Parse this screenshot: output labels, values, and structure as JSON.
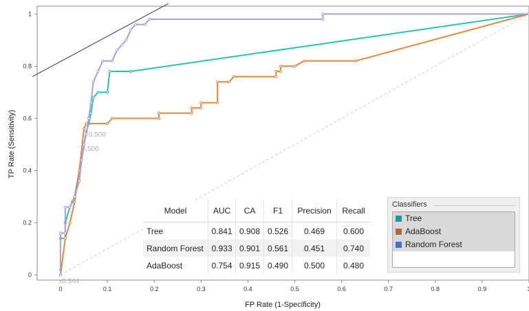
{
  "chart_data": {
    "type": "line",
    "xlabel": "FP Rate (1-Specificity)",
    "ylabel": "TP Rate (Sensitivity)",
    "xlim": [
      -0.05,
      1.0
    ],
    "ylim": [
      -0.02,
      1.03
    ],
    "x_ticks": [
      "0",
      "0.1",
      "0.2",
      "0.3",
      "0.4",
      "0.5",
      "0.6",
      "0.7",
      "0.8",
      "0.9",
      "1"
    ],
    "y_ticks": [
      "0",
      "0.2",
      "0.4",
      "0.6",
      "0.8",
      "1"
    ],
    "grid": false,
    "series": [
      {
        "name": "Tree",
        "color": "#22c7a6",
        "points": [
          [
            0,
            0
          ],
          [
            0,
            0.02
          ],
          [
            0,
            0.14
          ],
          [
            0.01,
            0.14
          ],
          [
            0.01,
            0.2
          ],
          [
            0.02,
            0.26
          ],
          [
            0.025,
            0.28
          ],
          [
            0.03,
            0.3
          ],
          [
            0.04,
            0.4
          ],
          [
            0.045,
            0.44
          ],
          [
            0.05,
            0.5
          ],
          [
            0.055,
            0.55
          ],
          [
            0.06,
            0.58
          ],
          [
            0.065,
            0.62
          ],
          [
            0.07,
            0.68
          ],
          [
            0.08,
            0.7
          ],
          [
            0.1,
            0.7
          ],
          [
            0.105,
            0.78
          ],
          [
            0.15,
            0.78
          ],
          [
            1,
            1
          ]
        ]
      },
      {
        "name": "AdaBoost",
        "color": "#e8853a",
        "points": [
          [
            0,
            0
          ],
          [
            0.01,
            0.14
          ],
          [
            0.02,
            0.2
          ],
          [
            0.03,
            0.28
          ],
          [
            0.04,
            0.4
          ],
          [
            0.05,
            0.56
          ],
          [
            0.055,
            0.58
          ],
          [
            0.1,
            0.58
          ],
          [
            0.11,
            0.6
          ],
          [
            0.21,
            0.6
          ],
          [
            0.21,
            0.62
          ],
          [
            0.28,
            0.62
          ],
          [
            0.28,
            0.64
          ],
          [
            0.3,
            0.64
          ],
          [
            0.3,
            0.66
          ],
          [
            0.335,
            0.66
          ],
          [
            0.335,
            0.74
          ],
          [
            0.36,
            0.74
          ],
          [
            0.37,
            0.76
          ],
          [
            0.46,
            0.76
          ],
          [
            0.46,
            0.78
          ],
          [
            0.47,
            0.78
          ],
          [
            0.47,
            0.8
          ],
          [
            0.5,
            0.8
          ],
          [
            0.52,
            0.82
          ],
          [
            0.63,
            0.82
          ],
          [
            1,
            1
          ]
        ]
      },
      {
        "name": "Random Forest",
        "color": "#a99ee3",
        "points": [
          [
            0,
            0
          ],
          [
            0,
            0.16
          ],
          [
            0.01,
            0.16
          ],
          [
            0.01,
            0.26
          ],
          [
            0.02,
            0.26
          ],
          [
            0.03,
            0.3
          ],
          [
            0.04,
            0.36
          ],
          [
            0.045,
            0.44
          ],
          [
            0.05,
            0.5
          ],
          [
            0.055,
            0.54
          ],
          [
            0.06,
            0.6
          ],
          [
            0.065,
            0.66
          ],
          [
            0.07,
            0.74
          ],
          [
            0.08,
            0.78
          ],
          [
            0.09,
            0.82
          ],
          [
            0.11,
            0.82
          ],
          [
            0.12,
            0.86
          ],
          [
            0.13,
            0.88
          ],
          [
            0.14,
            0.9
          ],
          [
            0.15,
            0.94
          ],
          [
            0.16,
            0.96
          ],
          [
            0.18,
            0.96
          ],
          [
            0.19,
            0.98
          ],
          [
            0.56,
            0.98
          ],
          [
            0.56,
            1
          ],
          [
            1,
            1
          ]
        ]
      }
    ],
    "diagonal": {
      "color": "#cfcfcf"
    },
    "iso_line": {
      "x1": -0.06,
      "y1": 0.76,
      "x2": 0.23,
      "y2": 1.04,
      "color": "#333333"
    },
    "threshold_labels": [
      {
        "text": "0.500",
        "x": 0.06,
        "y": 0.53
      },
      {
        "text": "0.500",
        "x": 0.045,
        "y": 0.475
      },
      {
        "text": "0.344",
        "x": 0.003,
        "y": -0.032
      }
    ]
  },
  "metrics_table": {
    "headers": [
      "Model",
      "AUC",
      "CA",
      "F1",
      "Precision",
      "Recall"
    ],
    "rows": [
      {
        "model": "Tree",
        "auc": "0.841",
        "ca": "0.908",
        "f1": "0.526",
        "precision": "0.469",
        "recall": "0.600"
      },
      {
        "model": "Random Forest",
        "auc": "0.933",
        "ca": "0.901",
        "f1": "0.561",
        "precision": "0.451",
        "recall": "0.740"
      },
      {
        "model": "AdaBoost",
        "auc": "0.754",
        "ca": "0.915",
        "f1": "0.490",
        "precision": "0.500",
        "recall": "0.480"
      }
    ]
  },
  "classifiers_legend": {
    "title": "Classifiers",
    "items": [
      {
        "label": "Tree",
        "color": "#1a9c9a"
      },
      {
        "label": "AdaBoost",
        "color": "#b0673a"
      },
      {
        "label": "Random Forest",
        "color": "#4c6ad0"
      }
    ]
  }
}
